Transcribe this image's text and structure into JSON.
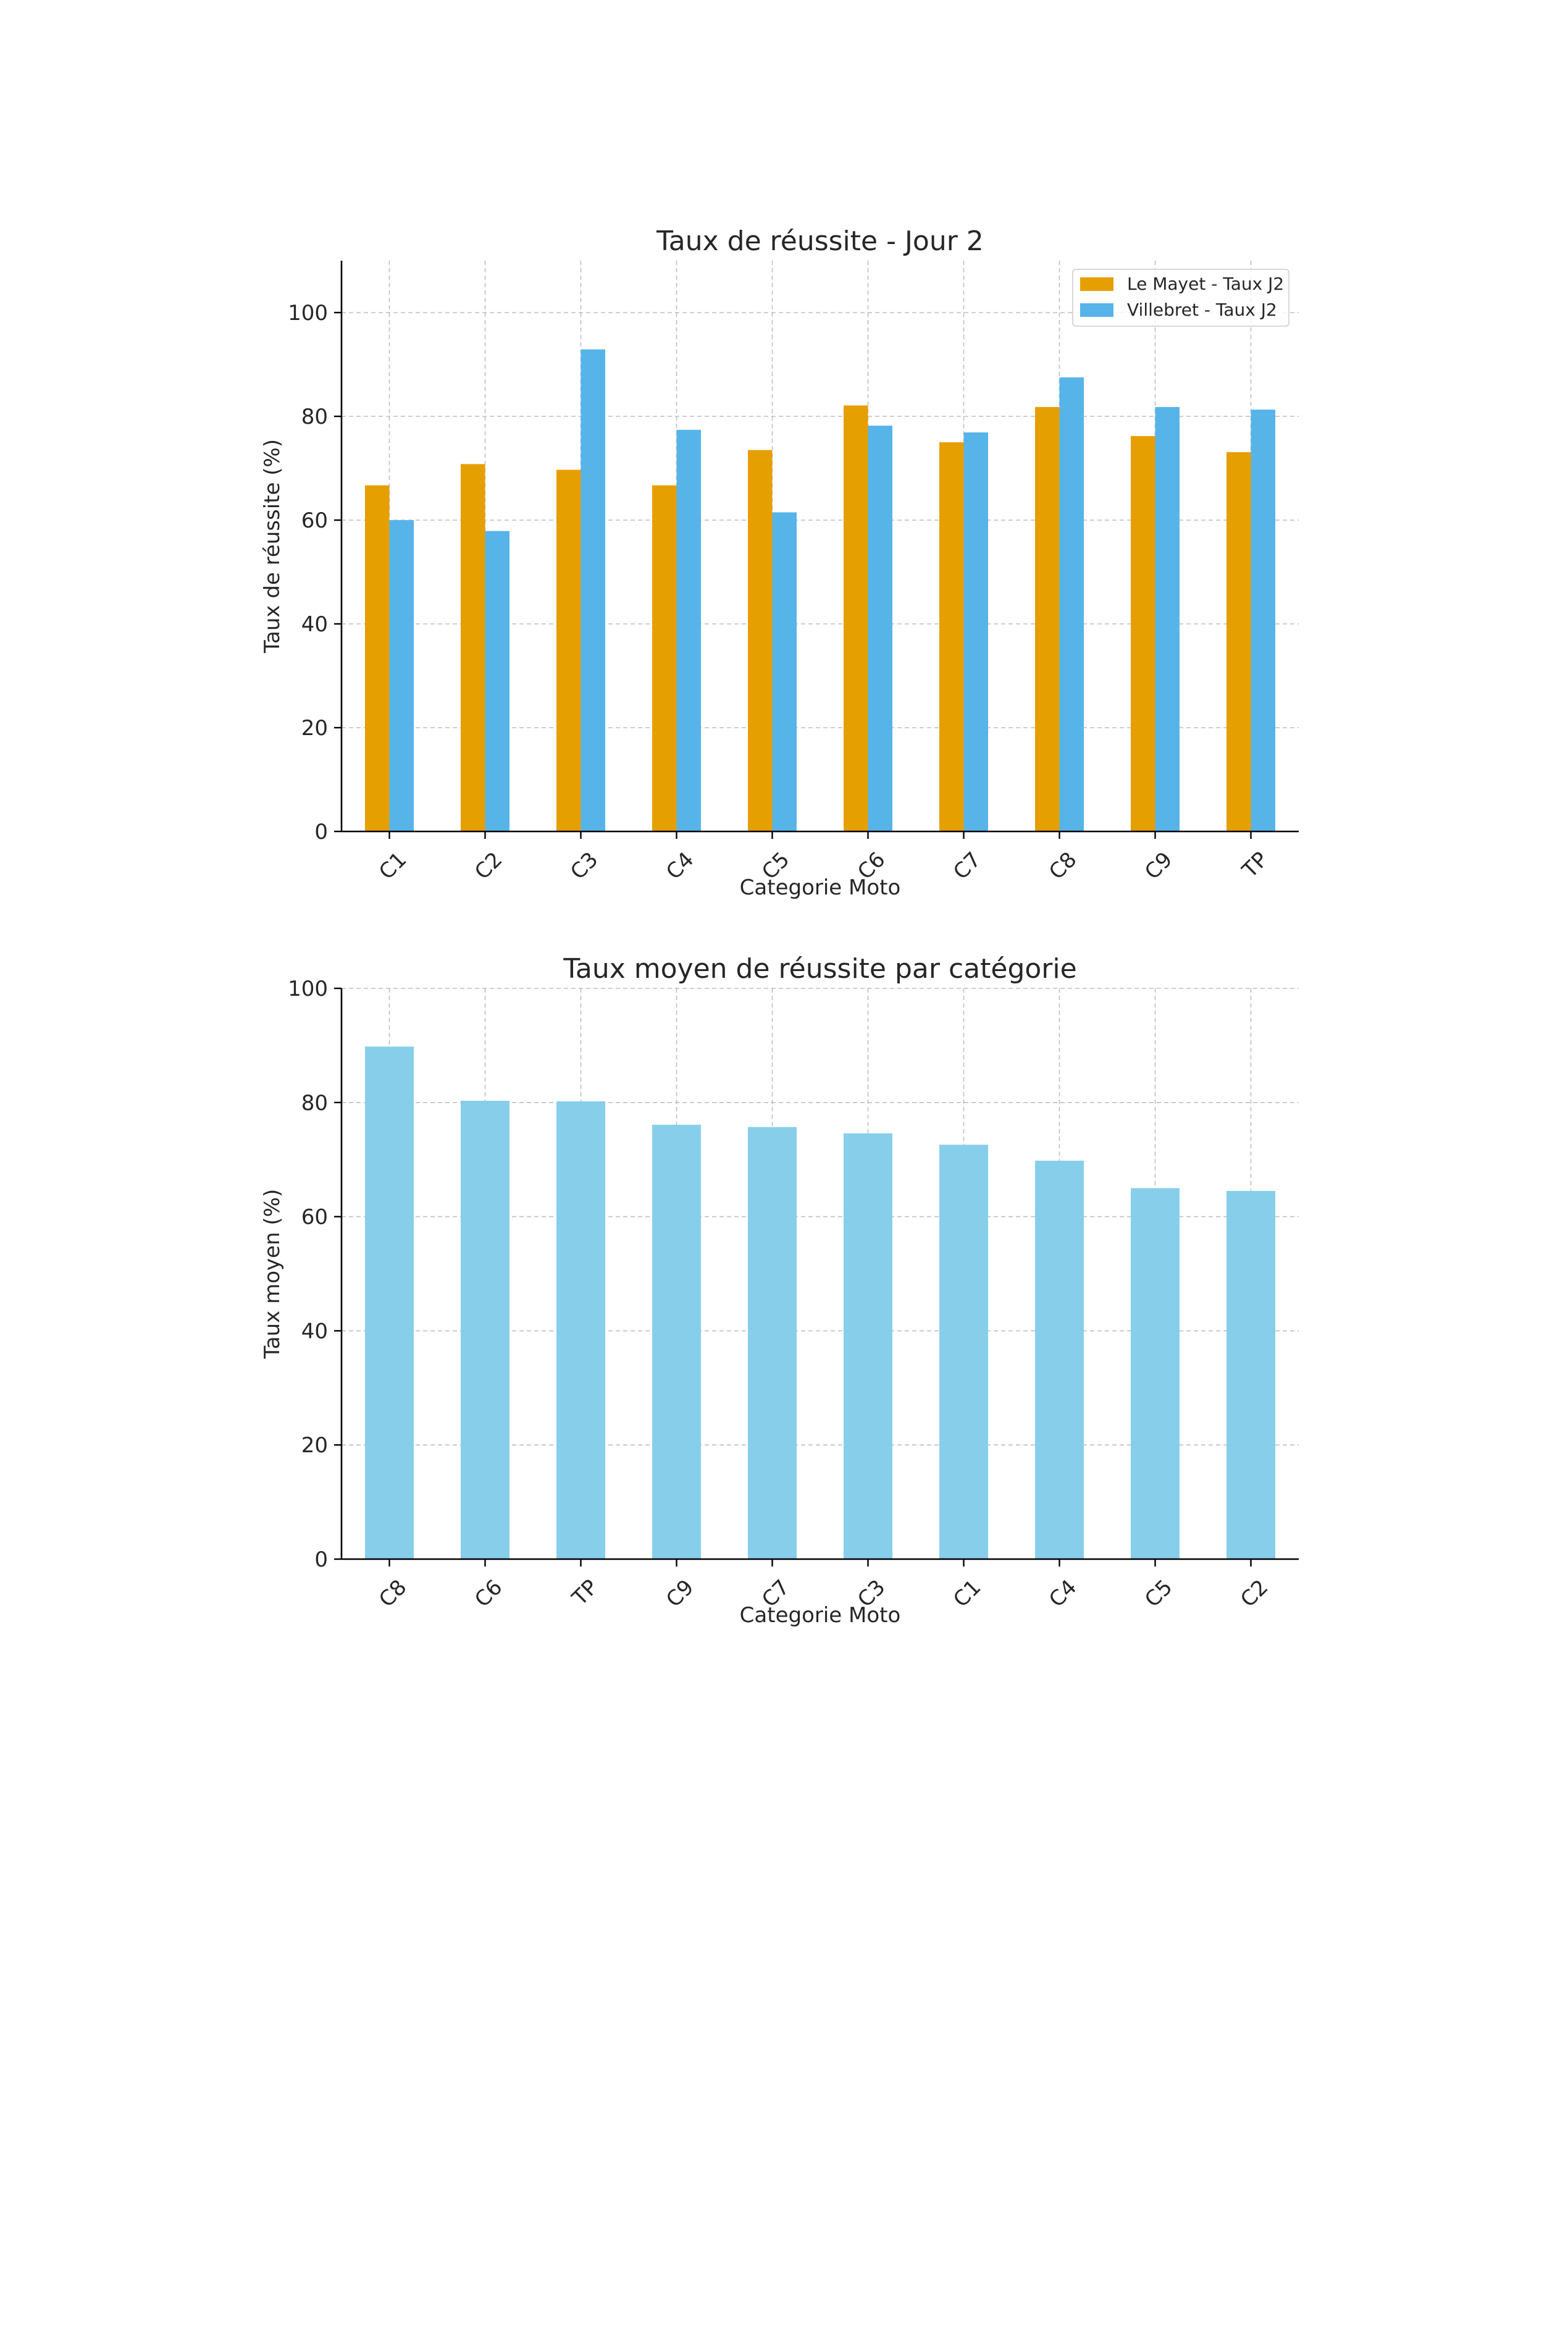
{
  "chart_data": [
    {
      "type": "bar",
      "title": "Taux de réussite - Jour 2",
      "xlabel": "Categorie Moto",
      "ylabel": "Taux de réussite (%)",
      "categories": [
        "C1",
        "C2",
        "C3",
        "C4",
        "C5",
        "C6",
        "C7",
        "C8",
        "C9",
        "TP"
      ],
      "series": [
        {
          "name": "Le Mayet - Taux J2",
          "color": "#E69F00",
          "values": [
            66.7,
            70.8,
            69.7,
            66.7,
            73.5,
            82.1,
            75.0,
            81.8,
            76.2,
            73.1
          ]
        },
        {
          "name": "Villebret - Taux J2",
          "color": "#56B4E9",
          "values": [
            60.0,
            57.9,
            92.9,
            77.4,
            61.5,
            78.2,
            76.9,
            87.5,
            81.8,
            81.3
          ]
        }
      ],
      "ylim": [
        0,
        110
      ],
      "yticks": [
        0,
        20,
        40,
        60,
        80,
        100
      ],
      "grid": true,
      "legend": "top-right"
    },
    {
      "type": "bar",
      "title": "Taux moyen de réussite par catégorie",
      "xlabel": "Categorie Moto",
      "ylabel": "Taux moyen (%)",
      "categories": [
        "C8",
        "C6",
        "TP",
        "C9",
        "C7",
        "C3",
        "C1",
        "C4",
        "C5",
        "C2"
      ],
      "series": [
        {
          "color": "#87CEEB",
          "values": [
            89.8,
            80.3,
            80.2,
            76.1,
            75.7,
            74.6,
            72.6,
            69.8,
            65.0,
            64.5
          ]
        }
      ],
      "ylim": [
        0,
        100
      ],
      "yticks": [
        0,
        20,
        40,
        60,
        80,
        100
      ],
      "grid": true
    }
  ]
}
